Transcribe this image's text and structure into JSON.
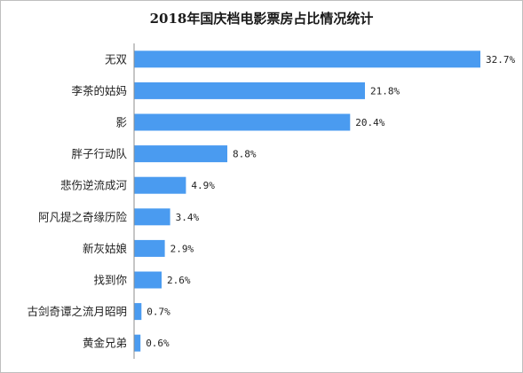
{
  "title": "2018年国庆档电影票房占比情况统计",
  "colors": {
    "bar": "#4a9bf0",
    "axis": "#8c8c8c",
    "text": "#222222"
  },
  "chart_data": {
    "type": "bar",
    "orientation": "horizontal",
    "title": "2018年国庆档电影票房占比情况统计",
    "categories": [
      "无双",
      "李茶的姑妈",
      "影",
      "胖子行动队",
      "悲伤逆流成河",
      "阿凡提之奇缘历险",
      "新灰姑娘",
      "找到你",
      "古剑奇谭之流月昭明",
      "黄金兄弟"
    ],
    "values": [
      32.7,
      21.8,
      20.4,
      8.8,
      4.9,
      3.4,
      2.9,
      2.6,
      0.7,
      0.6
    ],
    "value_labels": [
      "32.7%",
      "21.8%",
      "20.4%",
      "8.8%",
      "4.9%",
      "3.4%",
      "2.9%",
      "2.6%",
      "0.7%",
      "0.6%"
    ],
    "unit": "%",
    "xlim": [
      0,
      32.7
    ],
    "grid": false,
    "legend": "none"
  }
}
